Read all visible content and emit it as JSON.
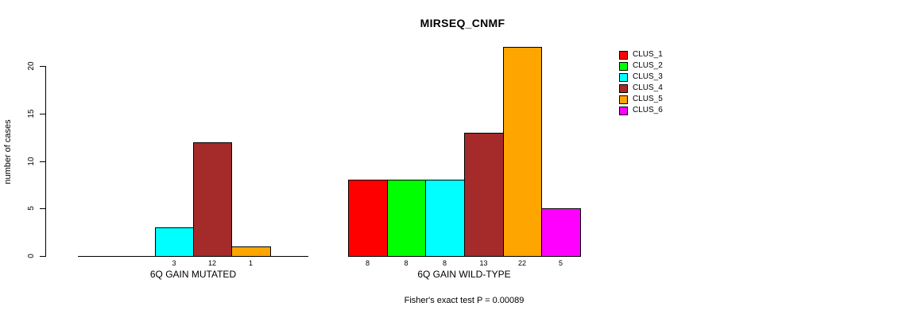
{
  "chart_data": {
    "type": "bar",
    "title": "MIRSEQ_CNMF",
    "ylabel": "number of cases",
    "xlabel": "",
    "ylim": [
      0,
      22
    ],
    "yticks": [
      0,
      5,
      10,
      15,
      20
    ],
    "grid": false,
    "legend_position": "right",
    "clusters": [
      "CLUS_1",
      "CLUS_2",
      "CLUS_3",
      "CLUS_4",
      "CLUS_5",
      "CLUS_6"
    ],
    "colors": [
      "#FF0000",
      "#00FF00",
      "#00FFFF",
      "#A52A2A",
      "#FFA500",
      "#FF00FF"
    ],
    "groups": [
      {
        "label": "6Q GAIN MUTATED",
        "values": [
          0,
          0,
          3,
          12,
          1,
          0
        ],
        "bar_labels": [
          "",
          "",
          "3",
          "12",
          "1",
          ""
        ]
      },
      {
        "label": "6Q GAIN WILD-TYPE",
        "values": [
          8,
          8,
          8,
          13,
          22,
          5
        ],
        "bar_labels": [
          "8",
          "8",
          "8",
          "13",
          "22",
          "5"
        ]
      }
    ],
    "annotation": "Fisher's exact test P = 0.00089"
  }
}
